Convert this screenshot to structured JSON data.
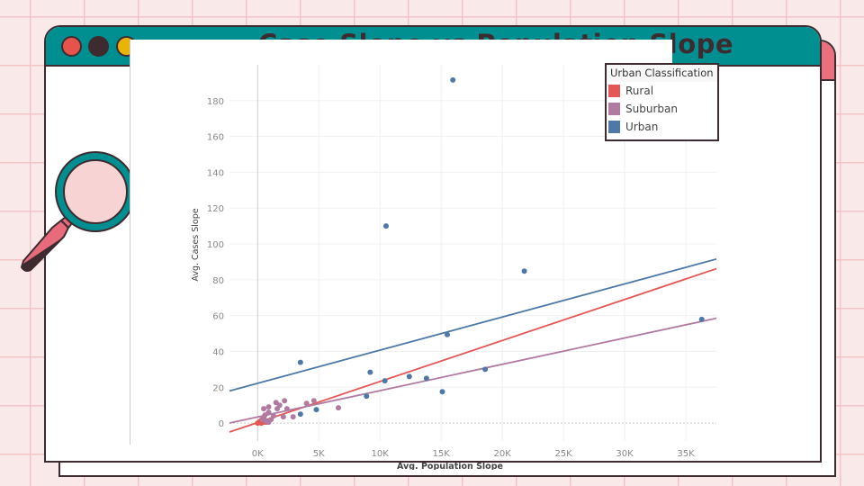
{
  "title": "Case Slope vs Population Slope",
  "window_buttons": [
    {
      "name": "close",
      "color": "#e5534b"
    },
    {
      "name": "minimize",
      "color": "#3d2b30"
    },
    {
      "name": "maximize",
      "color": "#eab308"
    }
  ],
  "decoration": {
    "icon": "magnifying-glass-icon"
  },
  "chart_data": {
    "type": "scatter",
    "title": "",
    "xlabel": "Avg. Population Slope",
    "ylabel": "Avg. Cases Slope",
    "xlim": [
      -2.3,
      37.5
    ],
    "ylim": [
      -10,
      200
    ],
    "x_unit": "K",
    "xticks": [
      "0K",
      "5K",
      "10K",
      "15K",
      "20K",
      "25K",
      "30K",
      "35K"
    ],
    "xtick_values": [
      0,
      5,
      10,
      15,
      20,
      25,
      30,
      35
    ],
    "yticks": [
      "0",
      "20",
      "40",
      "60",
      "80",
      "100",
      "120",
      "140",
      "160",
      "180"
    ],
    "ytick_values": [
      0,
      20,
      40,
      60,
      80,
      100,
      120,
      140,
      160,
      180
    ],
    "grid": true,
    "legend": {
      "title": "Urban Classification",
      "position": "top-right"
    },
    "series": [
      {
        "name": "Rural",
        "color": "#e45756",
        "points": [
          [
            0,
            0
          ],
          [
            0.1,
            0.3
          ],
          [
            0.2,
            0.5
          ],
          [
            0.3,
            0
          ],
          [
            0.4,
            1
          ],
          [
            0.5,
            0.5
          ],
          [
            0.6,
            1.5
          ],
          [
            0.8,
            1
          ],
          [
            0.2,
            1
          ],
          [
            0.35,
            2
          ],
          [
            0.7,
            0.5
          ]
        ],
        "trend": {
          "slope": 2.29,
          "intercept": 0.3
        }
      },
      {
        "name": "Suburban",
        "color": "#b07aa1",
        "points": [
          [
            0.5,
            8
          ],
          [
            0.9,
            9
          ],
          [
            1.5,
            11.5
          ],
          [
            2.2,
            12.5
          ],
          [
            1.8,
            10
          ],
          [
            1.6,
            8
          ],
          [
            2.4,
            8
          ],
          [
            0.9,
            6
          ],
          [
            4,
            11
          ],
          [
            4.6,
            12.5
          ],
          [
            6.6,
            8.5
          ],
          [
            2.1,
            3.5
          ],
          [
            2.9,
            3.5
          ],
          [
            1.3,
            4
          ],
          [
            0.5,
            3
          ],
          [
            0.9,
            0.5
          ],
          [
            0.4,
            2
          ],
          [
            0.7,
            1
          ],
          [
            1.1,
            2
          ],
          [
            0.6,
            4.5
          ]
        ],
        "trend": {
          "slope": 1.47,
          "intercept": 3.4
        }
      },
      {
        "name": "Urban",
        "color": "#4e79a7",
        "points": [
          [
            15.96,
            191.5
          ],
          [
            10.5,
            110
          ],
          [
            21.8,
            84.8
          ],
          [
            36.3,
            57.9
          ],
          [
            15.5,
            49.4
          ],
          [
            3.5,
            33.9
          ],
          [
            9.2,
            28.4
          ],
          [
            10.4,
            23.6
          ],
          [
            12.4,
            26
          ],
          [
            13.8,
            25
          ],
          [
            15.1,
            17.5
          ],
          [
            18.6,
            30
          ],
          [
            8.9,
            15
          ],
          [
            3.5,
            5
          ],
          [
            4.8,
            7.5
          ]
        ],
        "trend": {
          "slope": 1.85,
          "intercept": 22.2
        }
      }
    ]
  }
}
